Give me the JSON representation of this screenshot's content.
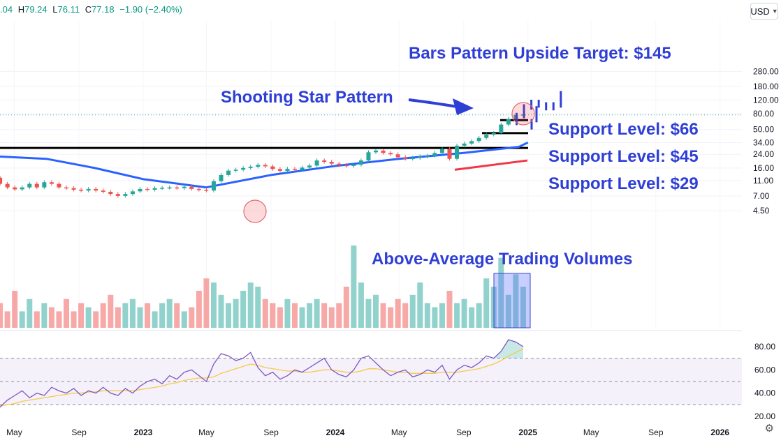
{
  "header": {
    "open_partial": ".04",
    "high_label": "H",
    "high": "79.24",
    "low_label": "L",
    "low": "76.11",
    "close_label": "C",
    "close": "77.18",
    "change": "−1.90 (−2.40%)",
    "currency": "USD"
  },
  "icons": {
    "currency_dropdown": "chevron-down-icon",
    "settings": "gear-icon"
  },
  "colors": {
    "up": "#26a69a",
    "down": "#ef5350",
    "annotation": "#2f3fd6",
    "ma_blue": "#2962ff",
    "ma_red": "#f23645",
    "rsi": "#7e57c2",
    "rsi_ma": "#f7c948",
    "rsi_band": "#ede7f6"
  },
  "chart_data": [
    {
      "type": "candlestick",
      "title": "",
      "y_scale": "log",
      "y_ticks": [
        "280.00",
        "180.00",
        "120.00",
        "80.00",
        "50.00",
        "34.00",
        "24.00",
        "16.00",
        "11.00",
        "7.00",
        "4.50"
      ],
      "x_ticks": [
        "May",
        "Sep",
        "2023",
        "May",
        "Sep",
        "2024",
        "May",
        "Sep",
        "2025",
        "May",
        "Sep",
        "2026"
      ],
      "series": [
        {
          "name": "Price (weekly close, approx.)",
          "x": [
            "2022-03-07",
            "2022-03-21",
            "2022-04-04",
            "2022-04-18",
            "2022-05-02",
            "2022-05-16",
            "2022-05-30",
            "2022-06-13",
            "2022-06-27",
            "2022-07-11",
            "2022-07-25",
            "2022-08-08",
            "2022-08-22",
            "2022-09-05",
            "2022-09-19",
            "2022-10-03",
            "2022-10-17",
            "2022-10-31",
            "2022-11-14",
            "2022-11-28",
            "2022-12-12",
            "2022-12-26",
            "2023-01-09",
            "2023-01-23",
            "2023-02-06",
            "2023-02-20",
            "2023-03-06",
            "2023-03-20",
            "2023-04-03",
            "2023-04-17",
            "2023-05-01",
            "2023-05-15",
            "2023-05-29",
            "2023-06-12",
            "2023-06-26",
            "2023-07-10",
            "2023-07-24",
            "2023-08-07",
            "2023-08-21",
            "2023-09-04",
            "2023-09-18",
            "2023-10-02",
            "2023-10-16",
            "2023-10-30",
            "2023-11-13",
            "2023-11-27",
            "2023-12-11",
            "2023-12-25",
            "2024-01-08",
            "2024-01-22",
            "2024-02-05",
            "2024-02-19",
            "2024-03-04",
            "2024-03-18",
            "2024-04-01",
            "2024-04-15",
            "2024-04-29",
            "2024-05-13",
            "2024-05-27",
            "2024-06-10",
            "2024-06-24",
            "2024-07-08",
            "2024-07-22",
            "2024-08-05",
            "2024-08-19",
            "2024-09-02",
            "2024-09-16",
            "2024-09-30",
            "2024-10-14",
            "2024-10-28",
            "2024-11-11",
            "2024-11-25",
            "2024-12-09",
            "2024-12-23"
          ],
          "values": [
            14,
            12,
            10,
            9,
            8.5,
            9,
            10,
            9,
            10.5,
            10,
            9,
            8.8,
            8.4,
            8.2,
            8.6,
            8.2,
            7.9,
            7.4,
            7,
            7.4,
            8,
            8.6,
            8.4,
            8.8,
            8.9,
            9,
            8.8,
            9.2,
            8.6,
            8.4,
            8.2,
            10.8,
            13,
            14.8,
            15.2,
            16,
            16.6,
            17.5,
            16.8,
            15.5,
            14.7,
            15.6,
            15.2,
            16.2,
            17.2,
            20,
            19.2,
            18.2,
            17.4,
            17,
            17.6,
            20,
            25.5,
            26.8,
            25,
            24,
            22,
            21,
            21.5,
            22.5,
            23,
            25,
            28,
            21,
            31,
            33,
            35.5,
            39,
            43,
            45,
            58,
            68,
            77,
            78
          ]
        },
        {
          "name": "Projected bars (upside target)",
          "x": [
            "2024-12-23",
            "2025-01-06",
            "2025-01-20",
            "2025-02-03",
            "2025-02-17",
            "2025-03-03",
            "2025-03-17",
            "2025-03-31"
          ],
          "values": [
            62,
            76,
            98,
            112,
            104,
            96,
            104,
            145
          ]
        }
      ],
      "moving_averages": [
        {
          "values_at": [
            "2022-03-01",
            "2022-07-01",
            "2022-10-01",
            "2023-01-01",
            "2023-05-01",
            "2023-09-01",
            "2024-01-01",
            "2024-05-01",
            "2024-09-01",
            "2024-12-15",
            "2025-01-01"
          ],
          "values": [
            23,
            21,
            16,
            11.5,
            9,
            13,
            17,
            21,
            25,
            30,
            34
          ]
        },
        {
          "values_at": [
            "2024-08-15",
            "2024-12-31"
          ],
          "values": [
            15.2,
            20
          ]
        }
      ],
      "horizontal_levels": [
        29,
        45,
        66
      ],
      "volume": {
        "relative_values": [
          0.25,
          0.15,
          0.3,
          0.2,
          0.45,
          0.2,
          0.35,
          0.2,
          0.3,
          0.25,
          0.2,
          0.35,
          0.2,
          0.3,
          0.25,
          0.2,
          0.3,
          0.4,
          0.25,
          0.3,
          0.35,
          0.25,
          0.3,
          0.2,
          0.3,
          0.35,
          0.3,
          0.2,
          0.25,
          0.45,
          0.6,
          0.55,
          0.4,
          0.3,
          0.35,
          0.45,
          0.55,
          0.5,
          0.35,
          0.3,
          0.25,
          0.35,
          0.3,
          0.25,
          0.3,
          0.35,
          0.3,
          0.25,
          0.3,
          0.5,
          1.0,
          0.55,
          0.35,
          0.4,
          0.3,
          0.25,
          0.35,
          0.3,
          0.4,
          0.55,
          0.3,
          0.25,
          0.3,
          0.45,
          0.3,
          0.35,
          0.25,
          0.3,
          0.6,
          0.5,
          0.85,
          0.4,
          0.65,
          0.5
        ]
      },
      "annotations": [
        "Bars Pattern Upside Target: $145",
        "Shooting Star Pattern",
        "Support Level: $66",
        "Support Level: $45",
        "Support Level: $29",
        "Above-Average Trading Volumes"
      ]
    },
    {
      "type": "line",
      "title": "",
      "y_ticks": [
        "80.00",
        "60.00",
        "40.00",
        "20.00"
      ],
      "ylim": [
        20,
        88
      ],
      "bands": [
        30,
        50,
        70
      ],
      "series": [
        {
          "name": "RSI",
          "values": [
            30,
            26,
            28,
            34,
            38,
            42,
            36,
            40,
            38,
            45,
            42,
            40,
            44,
            38,
            42,
            40,
            45,
            40,
            38,
            44,
            40,
            46,
            50,
            52,
            48,
            55,
            52,
            58,
            60,
            55,
            50,
            65,
            74,
            72,
            68,
            70,
            75,
            62,
            55,
            58,
            52,
            55,
            60,
            58,
            62,
            66,
            70,
            60,
            56,
            54,
            60,
            70,
            72,
            66,
            60,
            55,
            58,
            60,
            54,
            56,
            60,
            58,
            64,
            52,
            60,
            64,
            62,
            66,
            72,
            70,
            76,
            86,
            84,
            80
          ]
        },
        {
          "name": "RSI MA",
          "values": [
            30,
            29,
            29,
            30,
            31,
            33,
            34,
            35,
            36,
            37,
            38,
            39,
            40,
            40,
            41,
            41,
            42,
            42,
            42,
            42,
            42,
            43,
            44,
            45,
            46,
            48,
            49,
            51,
            52,
            53,
            53,
            54,
            57,
            59,
            61,
            63,
            65,
            64,
            62,
            61,
            60,
            59,
            59,
            58,
            58,
            59,
            60,
            60,
            59,
            58,
            58,
            59,
            61,
            61,
            60,
            59,
            58,
            58,
            57,
            57,
            57,
            57,
            58,
            58,
            58,
            59,
            60,
            61,
            63,
            65,
            68,
            72,
            75,
            78
          ]
        }
      ]
    }
  ]
}
